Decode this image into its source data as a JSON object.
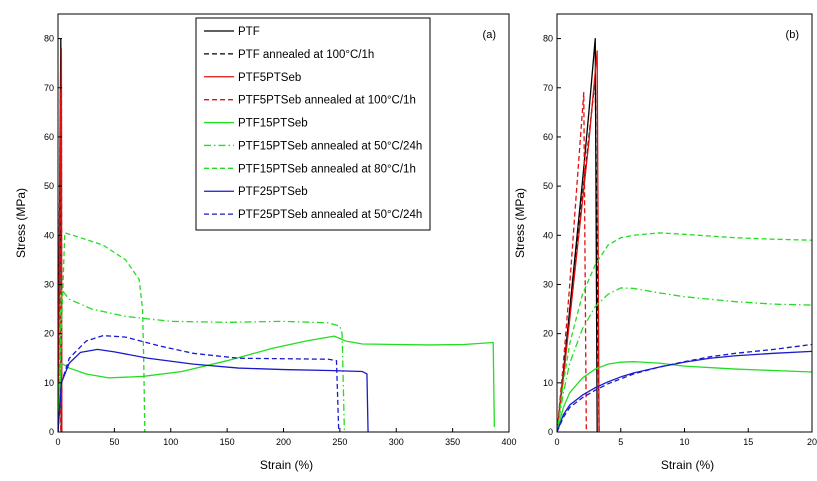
{
  "colors": {
    "black": "#000000",
    "red": "#e01010",
    "green": "#22dd22",
    "blue": "#1a1acc"
  },
  "legend": {
    "placement": "top-right of panel (a)",
    "entries": [
      {
        "label": "PTF",
        "color": "#000000",
        "dash": "solid"
      },
      {
        "label": "PTF annealed at 100°C/1h",
        "color": "#000000",
        "dash": "dash"
      },
      {
        "label": "PTF5PTSeb",
        "color": "#e01010",
        "dash": "solid"
      },
      {
        "label": "PTF5PTSeb annealed at 100°C/1h",
        "color": "#e01010",
        "dash": "dash"
      },
      {
        "label": "PTF15PTSeb",
        "color": "#22dd22",
        "dash": "solid"
      },
      {
        "label": "PTF15PTSeb annealed at 50°C/24h",
        "color": "#22dd22",
        "dash": "dashdot"
      },
      {
        "label": "PTF15PTSeb annealed at 80°C/1h",
        "color": "#22dd22",
        "dash": "dash"
      },
      {
        "label": "PTF25PTSeb",
        "color": "#1a1acc",
        "dash": "solid"
      },
      {
        "label": "PTF25PTSeb annealed at 50°C/24h",
        "color": "#1a1acc",
        "dash": "dash"
      }
    ]
  },
  "chart_data": [
    {
      "type": "line",
      "panel_label": "(a)",
      "xlabel": "Strain (%)",
      "ylabel": "Stress (MPa)",
      "xlim": [
        0,
        400
      ],
      "ylim": [
        0,
        85
      ],
      "xticks": [
        0,
        50,
        100,
        150,
        200,
        250,
        300,
        350,
        400
      ],
      "yticks": [
        0,
        10,
        20,
        30,
        40,
        50,
        60,
        70,
        80
      ],
      "grid": false,
      "series": [
        {
          "name": "PTF",
          "color": "#000000",
          "dash": "solid",
          "points": [
            [
              0,
              0
            ],
            [
              2.5,
              80
            ],
            [
              2.9,
              0
            ]
          ]
        },
        {
          "name": "PTF annealed at 100°C/1h",
          "color": "#000000",
          "dash": "dash",
          "points": [
            [
              0,
              0
            ],
            [
              3,
              72
            ],
            [
              3.3,
              0
            ]
          ]
        },
        {
          "name": "PTF5PTSeb",
          "color": "#e01010",
          "dash": "solid",
          "points": [
            [
              0,
              0
            ],
            [
              3,
              78
            ],
            [
              3.4,
              0
            ]
          ]
        },
        {
          "name": "PTF5PTSeb annealed at 100°C/1h",
          "color": "#e01010",
          "dash": "dash",
          "points": [
            [
              0,
              0
            ],
            [
              2,
              69
            ],
            [
              2.4,
              0
            ]
          ]
        },
        {
          "name": "PTF15PTSeb",
          "color": "#22dd22",
          "dash": "solid",
          "points": [
            [
              0,
              0
            ],
            [
              3,
              14
            ],
            [
              10,
              13
            ],
            [
              25,
              11.8
            ],
            [
              45,
              11
            ],
            [
              75,
              11.3
            ],
            [
              110,
              12.3
            ],
            [
              150,
              14.5
            ],
            [
              190,
              17
            ],
            [
              220,
              18.5
            ],
            [
              245,
              19.5
            ],
            [
              255,
              18.5
            ],
            [
              270,
              17.9
            ],
            [
              300,
              17.8
            ],
            [
              330,
              17.7
            ],
            [
              360,
              17.8
            ],
            [
              386,
              18.2
            ],
            [
              387,
              1
            ]
          ]
        },
        {
          "name": "PTF15PTSeb annealed at 50°C/24h",
          "color": "#22dd22",
          "dash": "dashdot",
          "points": [
            [
              0,
              0
            ],
            [
              3,
              29
            ],
            [
              10,
              27
            ],
            [
              30,
              25
            ],
            [
              60,
              23.5
            ],
            [
              100,
              22.5
            ],
            [
              150,
              22.3
            ],
            [
              200,
              22.5
            ],
            [
              240,
              22.2
            ],
            [
              250,
              21.5
            ],
            [
              252,
              20
            ],
            [
              254,
              0
            ]
          ]
        },
        {
          "name": "PTF15PTSeb annealed at 80°C/1h",
          "color": "#22dd22",
          "dash": "dash",
          "points": [
            [
              0,
              0
            ],
            [
              6,
              40.5
            ],
            [
              20,
              39.5
            ],
            [
              40,
              38
            ],
            [
              60,
              35
            ],
            [
              72,
              31
            ],
            [
              75,
              25
            ],
            [
              76,
              15
            ],
            [
              77,
              0
            ]
          ]
        },
        {
          "name": "PTF25PTSeb",
          "color": "#1a1acc",
          "dash": "solid",
          "points": [
            [
              0,
              0
            ],
            [
              3,
              10
            ],
            [
              10,
              14
            ],
            [
              20,
              16.2
            ],
            [
              35,
              16.8
            ],
            [
              50,
              16.3
            ],
            [
              80,
              15
            ],
            [
              120,
              13.8
            ],
            [
              160,
              13
            ],
            [
              200,
              12.7
            ],
            [
              240,
              12.5
            ],
            [
              270,
              12.3
            ],
            [
              274,
              11.8
            ],
            [
              275,
              0
            ]
          ]
        },
        {
          "name": "PTF25PTSeb annealed at 50°C/24h",
          "color": "#1a1acc",
          "dash": "dash",
          "points": [
            [
              0,
              0
            ],
            [
              3,
              10
            ],
            [
              10,
              15
            ],
            [
              25,
              18.5
            ],
            [
              40,
              19.6
            ],
            [
              60,
              19.3
            ],
            [
              90,
              17.5
            ],
            [
              120,
              16
            ],
            [
              160,
              15
            ],
            [
              200,
              14.9
            ],
            [
              240,
              14.8
            ],
            [
              247,
              14.5
            ],
            [
              249,
              0
            ]
          ]
        }
      ]
    },
    {
      "type": "line",
      "panel_label": "(b)",
      "xlabel": "Strain (%)",
      "ylabel": "Stress (MPa)",
      "xlim": [
        0,
        20
      ],
      "ylim": [
        0,
        85
      ],
      "xticks": [
        0,
        5,
        10,
        15,
        20
      ],
      "yticks": [
        0,
        10,
        20,
        30,
        40,
        50,
        60,
        70,
        80
      ],
      "grid": false,
      "series": [
        {
          "name": "PTF",
          "color": "#000000",
          "dash": "solid",
          "points": [
            [
              0,
              0
            ],
            [
              0.5,
              12
            ],
            [
              1,
              25
            ],
            [
              1.5,
              38
            ],
            [
              2,
              51
            ],
            [
              2.5,
              65
            ],
            [
              3,
              80
            ],
            [
              3.15,
              0
            ]
          ]
        },
        {
          "name": "PTF annealed at 100°C/1h",
          "color": "#000000",
          "dash": "dash",
          "points": [
            [
              0,
              0
            ],
            [
              0.5,
              12
            ],
            [
              1,
              24
            ],
            [
              1.5,
              36
            ],
            [
              2,
              48
            ],
            [
              2.5,
              60
            ],
            [
              3,
              72
            ],
            [
              3.3,
              0
            ]
          ]
        },
        {
          "name": "PTF5PTSeb",
          "color": "#e01010",
          "dash": "solid",
          "points": [
            [
              0,
              0
            ],
            [
              0.5,
              11
            ],
            [
              1,
              23
            ],
            [
              1.5,
              35
            ],
            [
              2,
              47
            ],
            [
              2.5,
              59
            ],
            [
              3.15,
              77.5
            ],
            [
              3.3,
              0
            ]
          ]
        },
        {
          "name": "PTF5PTSeb annealed at 100°C/1h",
          "color": "#e01010",
          "dash": "dash",
          "points": [
            [
              0,
              0
            ],
            [
              0.5,
              14
            ],
            [
              1,
              30
            ],
            [
              1.5,
              48
            ],
            [
              1.9,
              62
            ],
            [
              2.1,
              69
            ],
            [
              2.3,
              0
            ]
          ]
        },
        {
          "name": "PTF15PTSeb",
          "color": "#22dd22",
          "dash": "solid",
          "points": [
            [
              0,
              0
            ],
            [
              0.5,
              5
            ],
            [
              1,
              8
            ],
            [
              2,
              11
            ],
            [
              3,
              12.8
            ],
            [
              4,
              13.8
            ],
            [
              5,
              14.2
            ],
            [
              6,
              14.3
            ],
            [
              8,
              14
            ],
            [
              10,
              13.4
            ],
            [
              14,
              12.8
            ],
            [
              17,
              12.5
            ],
            [
              20,
              12.2
            ]
          ]
        },
        {
          "name": "PTF15PTSeb annealed at 50°C/24h",
          "color": "#22dd22",
          "dash": "dashdot",
          "points": [
            [
              0,
              0
            ],
            [
              0.5,
              8
            ],
            [
              1,
              14
            ],
            [
              2,
              21
            ],
            [
              3,
              25.5
            ],
            [
              4,
              28
            ],
            [
              5,
              29.3
            ],
            [
              6,
              29.2
            ],
            [
              8,
              28.3
            ],
            [
              10,
              27.5
            ],
            [
              14,
              26.5
            ],
            [
              17,
              26
            ],
            [
              20,
              25.8
            ]
          ]
        },
        {
          "name": "PTF15PTSeb annealed at 80°C/1h",
          "color": "#22dd22",
          "dash": "dash",
          "points": [
            [
              0,
              0
            ],
            [
              0.5,
              10
            ],
            [
              1,
              18
            ],
            [
              2,
              28
            ],
            [
              3,
              34
            ],
            [
              4,
              38
            ],
            [
              5,
              39.5
            ],
            [
              6,
              40
            ],
            [
              8,
              40.5
            ],
            [
              10,
              40.2
            ],
            [
              14,
              39.5
            ],
            [
              17,
              39.2
            ],
            [
              20,
              39
            ]
          ]
        },
        {
          "name": "PTF25PTSeb",
          "color": "#1a1acc",
          "dash": "solid",
          "points": [
            [
              0,
              0
            ],
            [
              0.5,
              3.5
            ],
            [
              1,
              5.5
            ],
            [
              2,
              7.5
            ],
            [
              3,
              9
            ],
            [
              4,
              10.2
            ],
            [
              5,
              11.2
            ],
            [
              6,
              12
            ],
            [
              8,
              13.2
            ],
            [
              10,
              14.2
            ],
            [
              12,
              15
            ],
            [
              14,
              15.5
            ],
            [
              17,
              16
            ],
            [
              20,
              16.4
            ]
          ]
        },
        {
          "name": "PTF25PTSeb annealed at 50°C/24h",
          "color": "#1a1acc",
          "dash": "dash",
          "points": [
            [
              0,
              0
            ],
            [
              0.5,
              3
            ],
            [
              1,
              5
            ],
            [
              2,
              7
            ],
            [
              3,
              8.5
            ],
            [
              4,
              9.8
            ],
            [
              5,
              10.8
            ],
            [
              6,
              11.8
            ],
            [
              8,
              13.2
            ],
            [
              10,
              14.3
            ],
            [
              12,
              15.3
            ],
            [
              14,
              16
            ],
            [
              17,
              16.8
            ],
            [
              20,
              17.8
            ]
          ]
        }
      ]
    }
  ]
}
